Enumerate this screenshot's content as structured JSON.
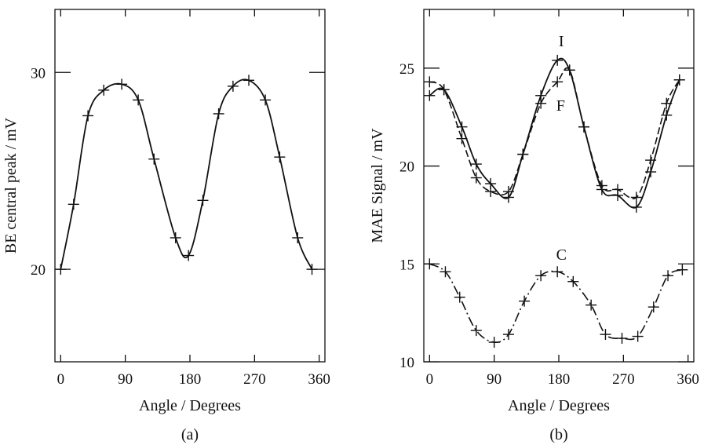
{
  "chart_data": [
    {
      "type": "line",
      "panel_label": "(a)",
      "xlabel": "Angle / Degrees",
      "ylabel": "BE central peak / mV",
      "xlim": [
        -8,
        368
      ],
      "ylim": [
        15.3,
        33.2
      ],
      "xticks": [
        0,
        90,
        180,
        270,
        360
      ],
      "xtick_labels": [
        "0",
        "90",
        "180",
        "270",
        "360"
      ],
      "yticks": [
        20,
        30
      ],
      "ytick_labels": [
        "20",
        "30"
      ],
      "grid": false,
      "series": [
        {
          "style": "solid",
          "points": [
            [
              0,
              20.0
            ],
            [
              18,
              23.3
            ],
            [
              38,
              27.8
            ],
            [
              60,
              29.1
            ],
            [
              85,
              29.4
            ],
            [
              108,
              28.6
            ],
            [
              130,
              25.6
            ],
            [
              160,
              21.6
            ],
            [
              178,
              20.7
            ],
            [
              198,
              23.5
            ],
            [
              220,
              27.9
            ],
            [
              240,
              29.3
            ],
            [
              262,
              29.6
            ],
            [
              285,
              28.6
            ],
            [
              305,
              25.7
            ],
            [
              330,
              21.6
            ],
            [
              350,
              20.0
            ]
          ]
        }
      ]
    },
    {
      "type": "line",
      "panel_label": "(b)",
      "xlabel": "Angle / Degrees",
      "ylabel": "MAE Signal / mV",
      "xlim": [
        -8,
        368
      ],
      "ylim": [
        10,
        28
      ],
      "xticks": [
        0,
        90,
        180,
        270,
        360
      ],
      "xtick_labels": [
        "0",
        "90",
        "180",
        "270",
        "360"
      ],
      "yticks": [
        10,
        15,
        20,
        25
      ],
      "ytick_labels": [
        "10",
        "15",
        "20",
        "25"
      ],
      "grid": false,
      "annotations": [
        {
          "text": "I",
          "x": 177,
          "y": 26.4
        },
        {
          "text": "F",
          "x": 176,
          "y": 23.1
        },
        {
          "text": "C",
          "x": 177,
          "y": 15.5
        }
      ],
      "series": [
        {
          "name": "I",
          "style": "solid",
          "points": [
            [
              0,
              23.6
            ],
            [
              20,
              23.9
            ],
            [
              45,
              22.0
            ],
            [
              65,
              20.1
            ],
            [
              85,
              19.1
            ],
            [
              110,
              18.4
            ],
            [
              130,
              20.6
            ],
            [
              155,
              23.6
            ],
            [
              178,
              25.4
            ],
            [
              195,
              24.9
            ],
            [
              215,
              22.0
            ],
            [
              240,
              18.8
            ],
            [
              262,
              18.5
            ],
            [
              288,
              17.9
            ],
            [
              308,
              19.7
            ],
            [
              330,
              22.6
            ],
            [
              348,
              24.4
            ]
          ]
        },
        {
          "name": "F",
          "style": "dashed",
          "points": [
            [
              0,
              24.3
            ],
            [
              20,
              23.9
            ],
            [
              45,
              21.4
            ],
            [
              65,
              19.4
            ],
            [
              85,
              18.7
            ],
            [
              110,
              18.7
            ],
            [
              130,
              20.6
            ],
            [
              155,
              23.2
            ],
            [
              178,
              24.3
            ],
            [
              195,
              24.9
            ],
            [
              215,
              22.0
            ],
            [
              240,
              19.0
            ],
            [
              262,
              18.8
            ],
            [
              288,
              18.4
            ],
            [
              308,
              20.3
            ],
            [
              330,
              23.2
            ],
            [
              348,
              24.4
            ]
          ]
        },
        {
          "name": "C",
          "style": "dashdot",
          "points": [
            [
              0,
              15.0
            ],
            [
              22,
              14.6
            ],
            [
              42,
              13.3
            ],
            [
              65,
              11.6
            ],
            [
              90,
              11.0
            ],
            [
              110,
              11.4
            ],
            [
              132,
              13.1
            ],
            [
              155,
              14.4
            ],
            [
              178,
              14.6
            ],
            [
              200,
              14.1
            ],
            [
              225,
              12.9
            ],
            [
              245,
              11.4
            ],
            [
              268,
              11.2
            ],
            [
              290,
              11.3
            ],
            [
              312,
              12.8
            ],
            [
              332,
              14.4
            ],
            [
              352,
              14.7
            ]
          ]
        }
      ]
    }
  ]
}
